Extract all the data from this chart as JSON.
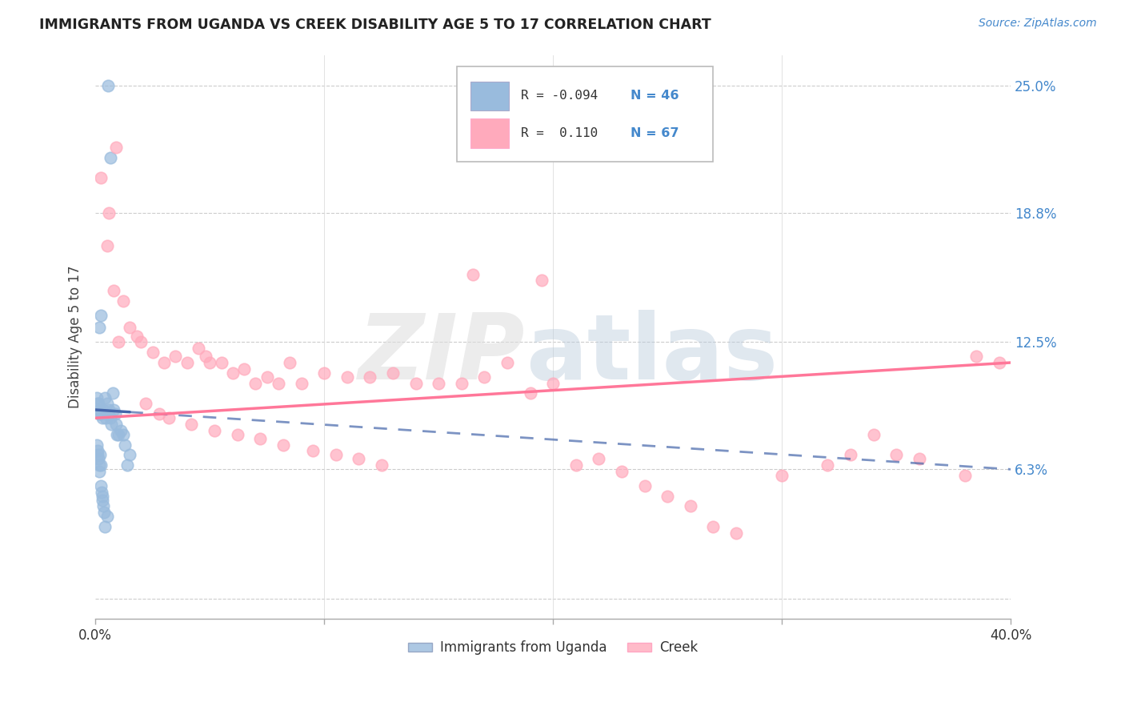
{
  "title": "IMMIGRANTS FROM UGANDA VS CREEK DISABILITY AGE 5 TO 17 CORRELATION CHART",
  "source": "Source: ZipAtlas.com",
  "ylabel": "Disability Age 5 to 17",
  "ytick_values": [
    0.0,
    6.3,
    12.5,
    18.8,
    25.0
  ],
  "ytick_labels": [
    "",
    "6.3%",
    "12.5%",
    "18.8%",
    "25.0%"
  ],
  "xtick_values": [
    0,
    10,
    20,
    30,
    40
  ],
  "xtick_labels": [
    "0.0%",
    "",
    "",
    "",
    "40.0%"
  ],
  "xlim": [
    0.0,
    40.0
  ],
  "ylim": [
    -1.0,
    26.5
  ],
  "legend_r1": "R = -0.094",
  "legend_n1": "N = 46",
  "legend_r2": "R =  0.110",
  "legend_n2": "N = 67",
  "legend_label1": "Immigrants from Uganda",
  "legend_label2": "Creek",
  "blue_color": "#99BBDD",
  "pink_color": "#FFAABC",
  "blue_line_color": "#4466AA",
  "pink_line_color": "#FF7799",
  "watermark_zip": "ZIP",
  "watermark_atlas": "atlas",
  "background_color": "#FFFFFF",
  "uganda_x": [
    0.55,
    0.65,
    0.22,
    0.18,
    0.05,
    0.08,
    0.12,
    0.15,
    0.18,
    0.25,
    0.3,
    0.35,
    0.4,
    0.45,
    0.5,
    0.55,
    0.6,
    0.65,
    0.7,
    0.75,
    0.8,
    0.85,
    0.9,
    0.95,
    1.0,
    1.1,
    1.2,
    1.3,
    1.4,
    1.5,
    0.05,
    0.08,
    0.1,
    0.12,
    0.15,
    0.18,
    0.2,
    0.22,
    0.25,
    0.28,
    0.3,
    0.32,
    0.35,
    0.38,
    0.4,
    0.5
  ],
  "uganda_y": [
    25.0,
    21.5,
    13.8,
    13.2,
    9.8,
    9.5,
    9.5,
    9.2,
    9.0,
    9.0,
    8.8,
    9.2,
    9.8,
    8.8,
    9.5,
    9.0,
    9.2,
    8.8,
    8.5,
    10.0,
    9.2,
    9.0,
    8.5,
    8.0,
    8.0,
    8.2,
    8.0,
    7.5,
    6.5,
    7.0,
    7.5,
    7.0,
    7.2,
    6.8,
    6.5,
    6.2,
    7.0,
    6.5,
    5.5,
    5.2,
    5.0,
    4.8,
    4.5,
    4.2,
    3.5,
    4.0
  ],
  "creek_x": [
    0.25,
    0.5,
    0.6,
    0.8,
    0.9,
    1.0,
    1.2,
    1.5,
    1.8,
    2.0,
    2.5,
    3.0,
    3.5,
    4.0,
    4.5,
    4.8,
    5.0,
    5.5,
    6.0,
    6.5,
    7.0,
    7.5,
    8.0,
    8.5,
    9.0,
    10.0,
    11.0,
    12.0,
    13.0,
    14.0,
    15.0,
    16.0,
    17.0,
    18.0,
    19.0,
    20.0,
    21.0,
    22.0,
    23.0,
    24.0,
    25.0,
    26.0,
    27.0,
    28.0,
    30.0,
    32.0,
    33.0,
    34.0,
    35.0,
    36.0,
    38.0,
    39.5,
    2.2,
    2.8,
    3.2,
    4.2,
    5.2,
    6.2,
    7.2,
    8.2,
    9.5,
    10.5,
    11.5,
    12.5,
    16.5,
    19.5,
    38.5
  ],
  "creek_y": [
    20.5,
    17.2,
    18.8,
    15.0,
    22.0,
    12.5,
    14.5,
    13.2,
    12.8,
    12.5,
    12.0,
    11.5,
    11.8,
    11.5,
    12.2,
    11.8,
    11.5,
    11.5,
    11.0,
    11.2,
    10.5,
    10.8,
    10.5,
    11.5,
    10.5,
    11.0,
    10.8,
    10.8,
    11.0,
    10.5,
    10.5,
    10.5,
    10.8,
    11.5,
    10.0,
    10.5,
    6.5,
    6.8,
    6.2,
    5.5,
    5.0,
    4.5,
    3.5,
    3.2,
    6.0,
    6.5,
    7.0,
    8.0,
    7.0,
    6.8,
    6.0,
    11.5,
    9.5,
    9.0,
    8.8,
    8.5,
    8.2,
    8.0,
    7.8,
    7.5,
    7.2,
    7.0,
    6.8,
    6.5,
    15.8,
    15.5,
    11.8
  ],
  "blue_trendline_x": [
    0.0,
    40.0
  ],
  "blue_trendline_y_start": 9.2,
  "blue_trendline_y_end": 6.3,
  "blue_solid_end_x": 1.5,
  "pink_trendline_x": [
    0.0,
    40.0
  ],
  "pink_trendline_y_start": 8.8,
  "pink_trendline_y_end": 11.5
}
